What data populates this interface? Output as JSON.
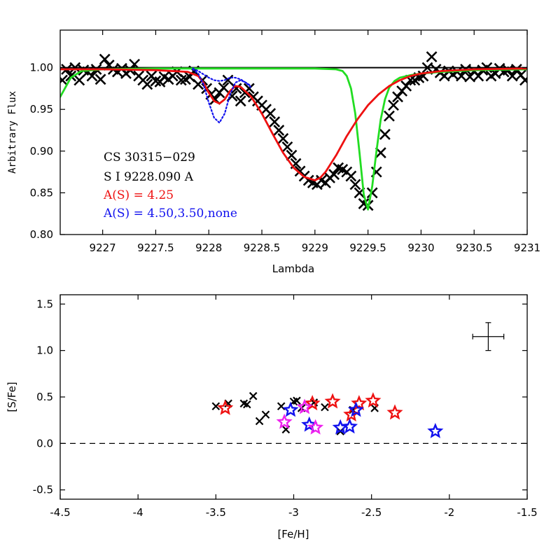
{
  "chart_data": [
    {
      "type": "line",
      "panel": "top",
      "xlabel": "Lambda",
      "ylabel": "Arbitrary Flux",
      "xlim": [
        9226.6,
        9231.0
      ],
      "ylim": [
        0.8,
        1.045
      ],
      "xticks": [
        9227,
        9227.5,
        9228,
        9228.5,
        9229,
        9229.5,
        9230,
        9230.5,
        9231
      ],
      "xtick_labels": [
        "9227",
        "9227.5",
        "9228",
        "9228.5",
        "9229",
        "9229.5",
        "9230",
        "9230.5",
        "9231"
      ],
      "yticks": [
        0.8,
        0.85,
        0.9,
        0.95,
        1.0
      ],
      "ytick_labels": [
        "0.80",
        "0.85",
        "0.90",
        "0.95",
        "1.00"
      ],
      "annotations": [
        {
          "text": "CS 30315−029",
          "color": "#000000"
        },
        {
          "text": "S I 9228.090 A",
          "color": "#000000"
        },
        {
          "text": "A(S) = 4.25",
          "color": "#ee1111"
        },
        {
          "text": "A(S) = 4.50,3.50,none",
          "color": "#1111ee"
        }
      ],
      "series": [
        {
          "style": "markers-x",
          "color": "#000000",
          "x": [
            9226.62,
            9226.66,
            9226.7,
            9226.74,
            9226.78,
            9226.82,
            9226.86,
            9226.9,
            9226.94,
            9226.98,
            9227.02,
            9227.06,
            9227.1,
            9227.14,
            9227.18,
            9227.22,
            9227.26,
            9227.3,
            9227.34,
            9227.38,
            9227.42,
            9227.46,
            9227.5,
            9227.54,
            9227.58,
            9227.62,
            9227.66,
            9227.7,
            9227.74,
            9227.78,
            9227.82,
            9227.86,
            9227.9,
            9227.94,
            9227.98,
            9228.02,
            9228.06,
            9228.1,
            9228.14,
            9228.18,
            9228.22,
            9228.26,
            9228.3,
            9228.34,
            9228.38,
            9228.42,
            9228.46,
            9228.5,
            9228.54,
            9228.58,
            9228.62,
            9228.66,
            9228.7,
            9228.74,
            9228.78,
            9228.82,
            9228.86,
            9228.9,
            9228.94,
            9228.98,
            9229.02,
            9229.06,
            9229.1,
            9229.14,
            9229.18,
            9229.22,
            9229.26,
            9229.3,
            9229.34,
            9229.38,
            9229.42,
            9229.46,
            9229.5,
            9229.54,
            9229.58,
            9229.62,
            9229.66,
            9229.7,
            9229.74,
            9229.78,
            9229.82,
            9229.86,
            9229.9,
            9229.94,
            9229.98,
            9230.02,
            9230.06,
            9230.1,
            9230.14,
            9230.18,
            9230.22,
            9230.26,
            9230.3,
            9230.34,
            9230.38,
            9230.42,
            9230.46,
            9230.5,
            9230.54,
            9230.58,
            9230.62,
            9230.66,
            9230.7,
            9230.74,
            9230.78,
            9230.82,
            9230.86,
            9230.9,
            9230.94,
            9230.98
          ],
          "y": [
            0.985,
            0.998,
            0.99,
            1.0,
            0.985,
            0.997,
            0.995,
            0.99,
            0.998,
            0.986,
            1.01,
            1.003,
            0.998,
            0.995,
            0.999,
            0.993,
            0.997,
            1.004,
            0.99,
            0.985,
            0.98,
            0.99,
            0.984,
            0.983,
            0.989,
            0.986,
            0.99,
            0.995,
            0.985,
            0.986,
            0.989,
            0.996,
            0.98,
            0.985,
            0.975,
            0.968,
            0.962,
            0.97,
            0.976,
            0.985,
            0.966,
            0.975,
            0.96,
            0.97,
            0.975,
            0.965,
            0.96,
            0.955,
            0.95,
            0.945,
            0.935,
            0.925,
            0.915,
            0.905,
            0.895,
            0.885,
            0.876,
            0.87,
            0.865,
            0.862,
            0.86,
            0.865,
            0.862,
            0.868,
            0.872,
            0.88,
            0.878,
            0.875,
            0.87,
            0.86,
            0.85,
            0.837,
            0.835,
            0.85,
            0.875,
            0.898,
            0.92,
            0.942,
            0.955,
            0.965,
            0.972,
            0.978,
            0.985,
            0.985,
            0.988,
            0.99,
            1.0,
            1.013,
            0.998,
            0.994,
            0.99,
            0.996,
            0.992,
            0.995,
            0.99,
            0.998,
            0.989,
            0.996,
            0.99,
            0.997,
            1.0,
            0.99,
            0.993,
            0.999,
            0.995,
            0.997,
            0.99,
            0.998,
            0.991,
            0.985
          ]
        },
        {
          "style": "line-solid",
          "color": "#000000",
          "x": [
            9226.6,
            9231.0
          ],
          "y": [
            1.0,
            1.0
          ]
        },
        {
          "style": "line-solid",
          "color": "#22dd22",
          "x": [
            9226.6,
            9226.7,
            9226.8,
            9227.0,
            9227.5,
            9228.0,
            9228.5,
            9229.0,
            9229.2,
            9229.26,
            9229.3,
            9229.34,
            9229.38,
            9229.42,
            9229.46,
            9229.5,
            9229.54,
            9229.58,
            9229.62,
            9229.66,
            9229.7,
            9229.75,
            9229.8,
            9229.9,
            9230.0,
            9230.2,
            9230.5,
            9231.0
          ],
          "y": [
            0.965,
            0.988,
            0.996,
            0.998,
            0.999,
            0.999,
            0.999,
            0.999,
            0.998,
            0.996,
            0.99,
            0.975,
            0.945,
            0.898,
            0.848,
            0.83,
            0.858,
            0.9,
            0.938,
            0.962,
            0.976,
            0.984,
            0.988,
            0.991,
            0.993,
            0.995,
            0.997,
            0.998
          ]
        },
        {
          "style": "line-solid",
          "color": "#ee1111",
          "x": [
            9226.6,
            9227.0,
            9227.5,
            9227.8,
            9227.9,
            9227.95,
            9228.0,
            9228.05,
            9228.1,
            9228.15,
            9228.2,
            9228.25,
            9228.3,
            9228.4,
            9228.5,
            9228.6,
            9228.7,
            9228.8,
            9228.9,
            9229.0,
            9229.05,
            9229.1,
            9229.2,
            9229.3,
            9229.4,
            9229.5,
            9229.6,
            9229.7,
            9229.8,
            9229.9,
            9230.0,
            9230.2,
            9230.5,
            9231.0
          ],
          "y": [
            0.998,
            0.998,
            0.997,
            0.995,
            0.99,
            0.982,
            0.97,
            0.96,
            0.957,
            0.962,
            0.972,
            0.978,
            0.977,
            0.965,
            0.945,
            0.921,
            0.898,
            0.88,
            0.869,
            0.865,
            0.868,
            0.875,
            0.895,
            0.918,
            0.938,
            0.955,
            0.968,
            0.978,
            0.985,
            0.99,
            0.993,
            0.996,
            0.998,
            0.999
          ]
        },
        {
          "style": "line-dotted",
          "color": "#1111ee",
          "x": [
            9227.85,
            9227.9,
            9227.95,
            9228.0,
            9228.05,
            9228.1,
            9228.15,
            9228.2,
            9228.25,
            9228.3,
            9228.35,
            9228.4
          ],
          "y": [
            0.998,
            0.993,
            0.98,
            0.958,
            0.94,
            0.934,
            0.945,
            0.968,
            0.982,
            0.985,
            0.982,
            0.978
          ]
        },
        {
          "style": "line-dotted",
          "color": "#1111ee",
          "x": [
            9227.85,
            9227.9,
            9227.95,
            9228.0,
            9228.05,
            9228.1,
            9228.15,
            9228.2,
            9228.25,
            9228.3,
            9228.35,
            9228.4
          ],
          "y": [
            0.999,
            0.996,
            0.992,
            0.988,
            0.985,
            0.984,
            0.985,
            0.988,
            0.988,
            0.986,
            0.982,
            0.976
          ]
        }
      ]
    },
    {
      "type": "scatter",
      "panel": "bottom",
      "xlabel": "[Fe/H]",
      "ylabel": "[S/Fe]",
      "xlim": [
        -4.5,
        -1.5
      ],
      "ylim": [
        -0.6,
        1.6
      ],
      "xticks": [
        -4.5,
        -4,
        -3.5,
        -3,
        -2.5,
        -2,
        -1.5
      ],
      "xtick_labels": [
        "-4.5",
        "-4",
        "-3.5",
        "-3",
        "-2.5",
        "-2",
        "-1.5"
      ],
      "yticks": [
        -0.5,
        0.0,
        0.5,
        1.0,
        1.5
      ],
      "ytick_labels": [
        "-0.5",
        "0.0",
        "0.5",
        "1.0",
        "1.5"
      ],
      "reference_line": {
        "y": 0.0,
        "style": "dashed",
        "color": "#000000"
      },
      "error_bar": {
        "x": -1.75,
        "y": 1.15,
        "xerr": 0.1,
        "yerr": 0.15
      },
      "series": [
        {
          "marker": "x",
          "color": "#000000",
          "x": [
            -3.5,
            -3.42,
            -3.32,
            -3.3,
            -3.26,
            -3.22,
            -3.18,
            -3.08,
            -3.05,
            -3.0,
            -2.98,
            -2.95,
            -2.87,
            -2.8,
            -2.7,
            -2.62,
            -2.48
          ],
          "y": [
            0.4,
            0.43,
            0.43,
            0.42,
            0.51,
            0.24,
            0.31,
            0.4,
            0.15,
            0.45,
            0.46,
            0.38,
            0.44,
            0.39,
            0.13,
            0.36,
            0.38
          ]
        },
        {
          "marker": "star",
          "color": "#ee1111",
          "x": [
            -3.44,
            -2.88,
            -2.75,
            -2.63,
            -2.58,
            -2.49,
            -2.35
          ],
          "y": [
            0.38,
            0.43,
            0.45,
            0.31,
            0.43,
            0.46,
            0.33
          ]
        },
        {
          "marker": "star",
          "color": "#1111ee",
          "x": [
            -3.02,
            -2.9,
            -2.7,
            -2.64,
            -2.6,
            -2.09
          ],
          "y": [
            0.36,
            0.2,
            0.17,
            0.18,
            0.36,
            0.13
          ]
        },
        {
          "marker": "star",
          "color": "#ee22ee",
          "x": [
            -3.06,
            -2.93,
            -2.86
          ],
          "y": [
            0.23,
            0.39,
            0.17
          ]
        }
      ]
    }
  ]
}
